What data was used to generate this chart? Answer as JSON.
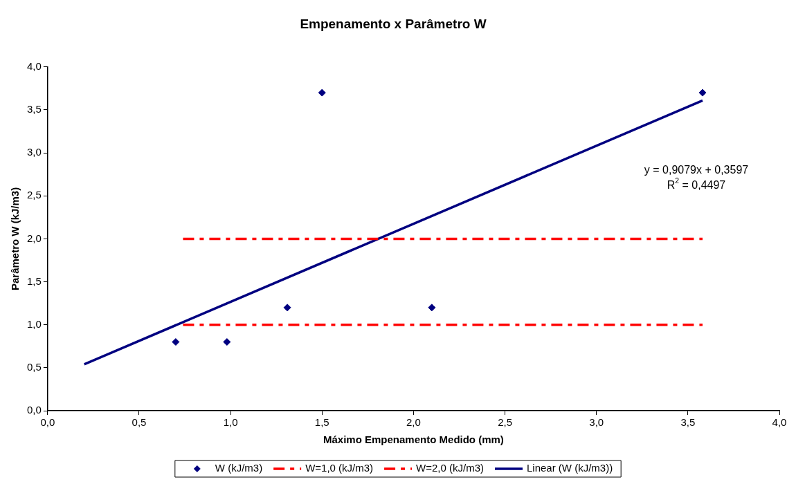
{
  "chart_data": {
    "type": "scatter",
    "title": "Empenamento x Parâmetro W",
    "xlabel": "Máximo Empenamento Medido (mm)",
    "ylabel": "Parâmetro W (kJ/m3)",
    "series": [
      {
        "name": "W (kJ/m3)",
        "type": "scatter",
        "color": "#000080",
        "marker": "diamond",
        "x": [
          0.7,
          0.98,
          1.31,
          1.5,
          2.1,
          3.58
        ],
        "values": [
          0.8,
          0.8,
          1.2,
          3.7,
          1.2,
          3.7
        ]
      },
      {
        "name": "W=1,0 (kJ/m3)",
        "type": "line",
        "color": "#ff0000",
        "marker": "none",
        "line_style": "dashed",
        "x": [
          0.74,
          3.58
        ],
        "values": [
          1.0,
          1.0
        ]
      },
      {
        "name": "W=2,0 (kJ/m3)",
        "type": "line",
        "color": "#ff0000",
        "marker": "none",
        "line_style": "dashed",
        "x": [
          0.74,
          3.58
        ],
        "values": [
          2.0,
          2.0
        ]
      },
      {
        "name": "Linear (W (kJ/m3))",
        "type": "line",
        "color": "#000080",
        "marker": "none",
        "line_style": "solid",
        "x": [
          0.2,
          3.58
        ],
        "values": [
          0.54,
          3.61
        ]
      }
    ],
    "xlim": [
      0,
      4
    ],
    "xticks": [
      {
        "value": 0,
        "label": "0,0"
      },
      {
        "value": 0.5,
        "label": "0,5"
      },
      {
        "value": 1,
        "label": "1,0"
      },
      {
        "value": 1.5,
        "label": "1,5"
      },
      {
        "value": 2,
        "label": "2,0"
      },
      {
        "value": 2.5,
        "label": "2,5"
      },
      {
        "value": 3,
        "label": "3,0"
      },
      {
        "value": 3.5,
        "label": "3,5"
      },
      {
        "value": 4,
        "label": "4,0"
      }
    ],
    "ylim": [
      0,
      4
    ],
    "yticks": [
      {
        "value": 0,
        "label": "0,0"
      },
      {
        "value": 0.5,
        "label": "0,5"
      },
      {
        "value": 1,
        "label": "1,0"
      },
      {
        "value": 1.5,
        "label": "1,5"
      },
      {
        "value": 2,
        "label": "2,0"
      },
      {
        "value": 2.5,
        "label": "2,5"
      },
      {
        "value": 3,
        "label": "3,0"
      },
      {
        "value": 3.5,
        "label": "3,5"
      },
      {
        "value": 4,
        "label": "4,0"
      }
    ],
    "annotations": [
      "y = 0,9079x + 0,3597",
      "R$^{2}$ = 0,4497"
    ],
    "grid": false,
    "legend": "bottom"
  }
}
